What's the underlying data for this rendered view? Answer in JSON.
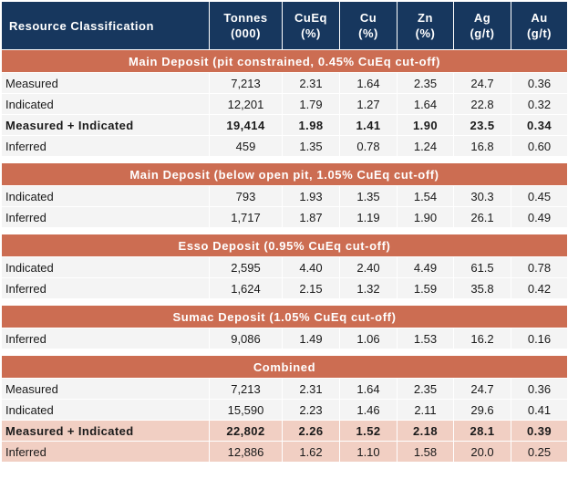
{
  "headers": [
    {
      "line1": "Resource Classification",
      "line2": ""
    },
    {
      "line1": "Tonnes",
      "line2": "(000)"
    },
    {
      "line1": "CuEq",
      "line2": "(%)"
    },
    {
      "line1": "Cu",
      "line2": "(%)"
    },
    {
      "line1": "Zn",
      "line2": "(%)"
    },
    {
      "line1": "Ag",
      "line2": "(g/t)"
    },
    {
      "line1": "Au",
      "line2": "(g/t)"
    }
  ],
  "sections": [
    {
      "title": "Main Deposit (pit constrained, 0.45% CuEq cut-off)",
      "rows": [
        {
          "label": "Measured",
          "values": [
            "7,213",
            "2.31",
            "1.64",
            "2.35",
            "24.7",
            "0.36"
          ],
          "bold": false,
          "highlight": false
        },
        {
          "label": "Indicated",
          "values": [
            "12,201",
            "1.79",
            "1.27",
            "1.64",
            "22.8",
            "0.32"
          ],
          "bold": false,
          "highlight": false
        },
        {
          "label": "Measured + Indicated",
          "values": [
            "19,414",
            "1.98",
            "1.41",
            "1.90",
            "23.5",
            "0.34"
          ],
          "bold": true,
          "highlight": false
        },
        {
          "label": "Inferred",
          "values": [
            "459",
            "1.35",
            "0.78",
            "1.24",
            "16.8",
            "0.60"
          ],
          "bold": false,
          "highlight": false
        }
      ]
    },
    {
      "title": "Main Deposit (below open pit, 1.05% CuEq cut-off)",
      "rows": [
        {
          "label": "Indicated",
          "values": [
            "793",
            "1.93",
            "1.35",
            "1.54",
            "30.3",
            "0.45"
          ],
          "bold": false,
          "highlight": false
        },
        {
          "label": "Inferred",
          "values": [
            "1,717",
            "1.87",
            "1.19",
            "1.90",
            "26.1",
            "0.49"
          ],
          "bold": false,
          "highlight": false
        }
      ]
    },
    {
      "title": "Esso Deposit (0.95% CuEq cut-off)",
      "rows": [
        {
          "label": "Indicated",
          "values": [
            "2,595",
            "4.40",
            "2.40",
            "4.49",
            "61.5",
            "0.78"
          ],
          "bold": false,
          "highlight": false
        },
        {
          "label": "Inferred",
          "values": [
            "1,624",
            "2.15",
            "1.32",
            "1.59",
            "35.8",
            "0.42"
          ],
          "bold": false,
          "highlight": false
        }
      ]
    },
    {
      "title": "Sumac Deposit (1.05% CuEq cut-off)",
      "rows": [
        {
          "label": "Inferred",
          "values": [
            "9,086",
            "1.49",
            "1.06",
            "1.53",
            "16.2",
            "0.16"
          ],
          "bold": false,
          "highlight": false
        }
      ]
    },
    {
      "title": "Combined",
      "rows": [
        {
          "label": "Measured",
          "values": [
            "7,213",
            "2.31",
            "1.64",
            "2.35",
            "24.7",
            "0.36"
          ],
          "bold": false,
          "highlight": false
        },
        {
          "label": "Indicated",
          "values": [
            "15,590",
            "2.23",
            "1.46",
            "2.11",
            "29.6",
            "0.41"
          ],
          "bold": false,
          "highlight": false
        },
        {
          "label": "Measured + Indicated",
          "values": [
            "22,802",
            "2.26",
            "1.52",
            "2.18",
            "28.1",
            "0.39"
          ],
          "bold": true,
          "highlight": true
        },
        {
          "label": "Inferred",
          "values": [
            "12,886",
            "1.62",
            "1.10",
            "1.58",
            "20.0",
            "0.25"
          ],
          "bold": false,
          "highlight": true
        }
      ]
    }
  ],
  "colors": {
    "header_bg": "#17375e",
    "section_bg": "#cc6d52",
    "row_bg": "#f4f4f4",
    "highlight_bg": "#f1cfc3"
  }
}
